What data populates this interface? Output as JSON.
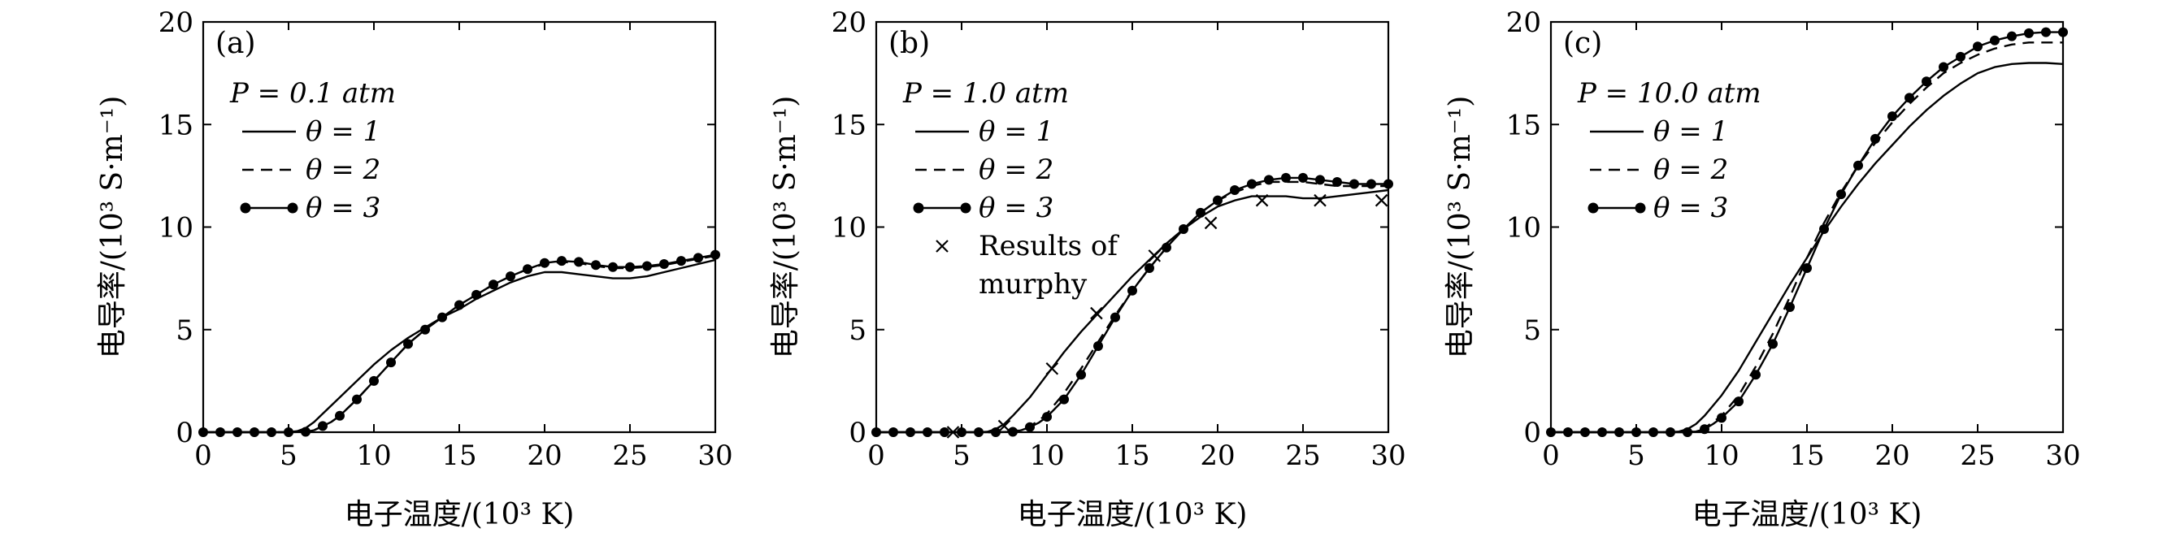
{
  "figure": {
    "background": "#ffffff",
    "line_color": "#000000"
  },
  "chart_data": [
    {
      "type": "line",
      "panel_label": "(a)",
      "pressure_label": "P = 0.1 atm",
      "xlabel": "电子温度/(10³ K)",
      "ylabel": "电导率/(10³ S·m⁻¹)",
      "xlim": [
        0,
        30
      ],
      "ylim": [
        0,
        20
      ],
      "xticks": [
        0,
        5,
        10,
        15,
        20,
        25,
        30
      ],
      "yticks": [
        0,
        5,
        10,
        15,
        20
      ],
      "legend_position": "top-left",
      "series": [
        {
          "name": "θ = 1",
          "style": "solid",
          "x": [
            0,
            2,
            4,
            5,
            5.5,
            6,
            6.5,
            7,
            8,
            9,
            10,
            11,
            12,
            13,
            14,
            15,
            16,
            17,
            18,
            19,
            20,
            21,
            22,
            23,
            24,
            25,
            26,
            27,
            28,
            29,
            30
          ],
          "y": [
            0,
            0,
            0,
            0,
            0.05,
            0.2,
            0.5,
            0.9,
            1.7,
            2.5,
            3.3,
            4.0,
            4.6,
            5.1,
            5.6,
            6.0,
            6.5,
            6.9,
            7.3,
            7.6,
            7.8,
            7.8,
            7.7,
            7.6,
            7.5,
            7.5,
            7.6,
            7.8,
            8.0,
            8.2,
            8.4
          ]
        },
        {
          "name": "θ = 2",
          "style": "dashed",
          "x": [
            0,
            2,
            4,
            5,
            6,
            6.5,
            7,
            7.5,
            8,
            9,
            10,
            11,
            12,
            13,
            14,
            15,
            16,
            17,
            18,
            19,
            20,
            21,
            22,
            23,
            24,
            25,
            26,
            27,
            28,
            29,
            30
          ],
          "y": [
            0,
            0,
            0,
            0,
            0.02,
            0.1,
            0.3,
            0.5,
            0.8,
            1.6,
            2.5,
            3.4,
            4.3,
            5.0,
            5.6,
            6.2,
            6.7,
            7.2,
            7.6,
            7.95,
            8.2,
            8.3,
            8.25,
            8.1,
            8.0,
            8.0,
            8.05,
            8.15,
            8.3,
            8.45,
            8.6
          ]
        },
        {
          "name": "θ = 3",
          "style": "solid-dot",
          "x": [
            0,
            2,
            4,
            5,
            6,
            6.5,
            7,
            7.5,
            8,
            9,
            10,
            11,
            12,
            13,
            14,
            15,
            16,
            17,
            18,
            19,
            20,
            21,
            22,
            23,
            24,
            25,
            26,
            27,
            28,
            29,
            30
          ],
          "y": [
            0,
            0,
            0,
            0,
            0.02,
            0.1,
            0.3,
            0.5,
            0.8,
            1.6,
            2.5,
            3.4,
            4.3,
            5.0,
            5.6,
            6.2,
            6.7,
            7.2,
            7.6,
            7.95,
            8.25,
            8.35,
            8.3,
            8.15,
            8.05,
            8.05,
            8.1,
            8.2,
            8.35,
            8.5,
            8.65
          ],
          "markers": [
            [
              0,
              0
            ],
            [
              1,
              0
            ],
            [
              2,
              0
            ],
            [
              3,
              0
            ],
            [
              4,
              0
            ],
            [
              5,
              0
            ],
            [
              6,
              0.02
            ],
            [
              7,
              0.3
            ],
            [
              8,
              0.8
            ],
            [
              9,
              1.6
            ],
            [
              10,
              2.5
            ],
            [
              11,
              3.4
            ],
            [
              12,
              4.3
            ],
            [
              13,
              5.0
            ],
            [
              14,
              5.6
            ],
            [
              15,
              6.2
            ],
            [
              16,
              6.7
            ],
            [
              17,
              7.2
            ],
            [
              18,
              7.6
            ],
            [
              19,
              7.95
            ],
            [
              20,
              8.25
            ],
            [
              21,
              8.35
            ],
            [
              22,
              8.3
            ],
            [
              23,
              8.15
            ],
            [
              24,
              8.05
            ],
            [
              25,
              8.05
            ],
            [
              26,
              8.1
            ],
            [
              27,
              8.2
            ],
            [
              28,
              8.35
            ],
            [
              29,
              8.5
            ],
            [
              30,
              8.65
            ]
          ]
        }
      ],
      "legend": [
        "θ = 1",
        "θ = 2",
        "θ = 3"
      ]
    },
    {
      "type": "line",
      "panel_label": "(b)",
      "pressure_label": "P = 1.0 atm",
      "xlabel": "电子温度/(10³ K)",
      "ylabel": "电导率/(10³ S·m⁻¹)",
      "xlim": [
        0,
        30
      ],
      "ylim": [
        0,
        20
      ],
      "xticks": [
        0,
        5,
        10,
        15,
        20,
        25,
        30
      ],
      "yticks": [
        0,
        5,
        10,
        15,
        20
      ],
      "legend_position": "top-left",
      "series": [
        {
          "name": "θ = 1",
          "style": "solid",
          "x": [
            0,
            3,
            5,
            6,
            6.5,
            7,
            7.5,
            8,
            9,
            10,
            11,
            12,
            13,
            14,
            15,
            16,
            17,
            18,
            19,
            20,
            21,
            22,
            23,
            24,
            25,
            26,
            27,
            28,
            29,
            30
          ],
          "y": [
            0,
            0,
            0,
            0,
            0.02,
            0.15,
            0.4,
            0.8,
            1.7,
            2.8,
            3.9,
            4.9,
            5.8,
            6.7,
            7.6,
            8.4,
            9.2,
            9.9,
            10.5,
            11.0,
            11.3,
            11.5,
            11.5,
            11.5,
            11.4,
            11.4,
            11.5,
            11.6,
            11.7,
            11.8
          ]
        },
        {
          "name": "θ = 2",
          "style": "dashed",
          "x": [
            0,
            3,
            5,
            7,
            8,
            8.5,
            9,
            9.5,
            10,
            11,
            12,
            13,
            14,
            15,
            16,
            17,
            18,
            19,
            20,
            21,
            22,
            23,
            24,
            25,
            26,
            27,
            28,
            29,
            30
          ],
          "y": [
            0,
            0,
            0,
            0,
            0.03,
            0.12,
            0.3,
            0.55,
            0.9,
            1.9,
            3.1,
            4.4,
            5.7,
            6.9,
            8.0,
            9.0,
            9.9,
            10.7,
            11.3,
            11.7,
            12.0,
            12.2,
            12.2,
            12.2,
            12.1,
            12.0,
            12.0,
            12.0,
            12.0
          ]
        },
        {
          "name": "θ = 3",
          "style": "solid-dot",
          "x": [
            0,
            3,
            5,
            7,
            8,
            8.5,
            9,
            9.5,
            10,
            11,
            12,
            13,
            14,
            15,
            16,
            17,
            18,
            19,
            20,
            21,
            22,
            23,
            24,
            25,
            26,
            27,
            28,
            29,
            30
          ],
          "y": [
            0,
            0,
            0,
            0,
            0.02,
            0.1,
            0.25,
            0.45,
            0.75,
            1.6,
            2.8,
            4.2,
            5.6,
            6.9,
            8.0,
            9.0,
            9.9,
            10.7,
            11.3,
            11.8,
            12.1,
            12.3,
            12.4,
            12.4,
            12.3,
            12.2,
            12.1,
            12.1,
            12.1
          ],
          "markers": [
            [
              0,
              0
            ],
            [
              1,
              0
            ],
            [
              2,
              0
            ],
            [
              3,
              0
            ],
            [
              4,
              0
            ],
            [
              5,
              0
            ],
            [
              6,
              0
            ],
            [
              7,
              0
            ],
            [
              8,
              0.02
            ],
            [
              9,
              0.25
            ],
            [
              10,
              0.75
            ],
            [
              11,
              1.6
            ],
            [
              12,
              2.8
            ],
            [
              13,
              4.2
            ],
            [
              14,
              5.6
            ],
            [
              15,
              6.9
            ],
            [
              16,
              8.0
            ],
            [
              17,
              9.0
            ],
            [
              18,
              9.9
            ],
            [
              19,
              10.7
            ],
            [
              20,
              11.3
            ],
            [
              21,
              11.8
            ],
            [
              22,
              12.1
            ],
            [
              23,
              12.3
            ],
            [
              24,
              12.4
            ],
            [
              25,
              12.4
            ],
            [
              26,
              12.3
            ],
            [
              27,
              12.2
            ],
            [
              28,
              12.1
            ],
            [
              29,
              12.1
            ],
            [
              30,
              12.1
            ]
          ]
        },
        {
          "name": "Results of murphy",
          "style": "cross",
          "points": [
            [
              4.5,
              0
            ],
            [
              7.5,
              0.3
            ],
            [
              10.3,
              3.1
            ],
            [
              12.9,
              5.8
            ],
            [
              16.3,
              8.6
            ],
            [
              19.6,
              10.2
            ],
            [
              22.6,
              11.3
            ],
            [
              26.0,
              11.3
            ],
            [
              29.6,
              11.3
            ]
          ]
        }
      ],
      "legend": [
        "θ = 1",
        "θ = 2",
        "θ = 3",
        "Results of",
        "murphy"
      ]
    },
    {
      "type": "line",
      "panel_label": "(c)",
      "pressure_label": "P = 10.0 atm",
      "xlabel": "电子温度/(10³ K)",
      "ylabel": "电导率/(10³ S·m⁻¹)",
      "xlim": [
        0,
        30
      ],
      "ylim": [
        0,
        20
      ],
      "xticks": [
        0,
        5,
        10,
        15,
        20,
        25,
        30
      ],
      "yticks": [
        0,
        5,
        10,
        15,
        20
      ],
      "legend_position": "top-left",
      "series": [
        {
          "name": "θ = 1",
          "style": "solid",
          "x": [
            0,
            4,
            6,
            7,
            7.5,
            8,
            8.5,
            9,
            10,
            11,
            12,
            13,
            14,
            15,
            16,
            17,
            18,
            19,
            20,
            21,
            22,
            23,
            24,
            25,
            26,
            27,
            28,
            29,
            30
          ],
          "y": [
            0,
            0,
            0,
            0,
            0.03,
            0.15,
            0.4,
            0.8,
            1.8,
            3.0,
            4.4,
            5.8,
            7.2,
            8.5,
            9.8,
            11.0,
            12.1,
            13.1,
            14.0,
            14.9,
            15.7,
            16.4,
            17.0,
            17.5,
            17.8,
            17.95,
            18.0,
            18.0,
            17.95
          ]
        },
        {
          "name": "θ = 2",
          "style": "dashed",
          "x": [
            0,
            4,
            6,
            8,
            8.5,
            9,
            9.5,
            10,
            11,
            12,
            13,
            14,
            15,
            16,
            17,
            18,
            19,
            20,
            21,
            22,
            23,
            24,
            25,
            26,
            27,
            28,
            29,
            30
          ],
          "y": [
            0,
            0,
            0,
            0,
            0.05,
            0.2,
            0.5,
            0.8,
            1.8,
            3.2,
            4.8,
            6.6,
            8.5,
            10.2,
            11.7,
            13.0,
            14.1,
            15.1,
            16.0,
            16.8,
            17.5,
            18.0,
            18.4,
            18.7,
            18.9,
            19.0,
            19.0,
            19.0
          ]
        },
        {
          "name": "θ = 3",
          "style": "solid-dot",
          "x": [
            0,
            4,
            6,
            8,
            8.5,
            9,
            9.5,
            10,
            11,
            12,
            13,
            14,
            15,
            16,
            17,
            18,
            19,
            20,
            21,
            22,
            23,
            24,
            25,
            26,
            27,
            28,
            29,
            30
          ],
          "y": [
            0,
            0,
            0,
            0,
            0.03,
            0.15,
            0.4,
            0.7,
            1.5,
            2.8,
            4.3,
            6.1,
            8.0,
            9.9,
            11.6,
            13.0,
            14.3,
            15.4,
            16.3,
            17.1,
            17.8,
            18.3,
            18.8,
            19.1,
            19.3,
            19.45,
            19.5,
            19.5
          ],
          "markers": [
            [
              0,
              0
            ],
            [
              1,
              0
            ],
            [
              2,
              0
            ],
            [
              3,
              0
            ],
            [
              4,
              0
            ],
            [
              5,
              0
            ],
            [
              6,
              0
            ],
            [
              7,
              0
            ],
            [
              8,
              0
            ],
            [
              9,
              0.15
            ],
            [
              10,
              0.7
            ],
            [
              11,
              1.5
            ],
            [
              12,
              2.8
            ],
            [
              13,
              4.3
            ],
            [
              14,
              6.1
            ],
            [
              15,
              8.0
            ],
            [
              16,
              9.9
            ],
            [
              17,
              11.6
            ],
            [
              18,
              13.0
            ],
            [
              19,
              14.3
            ],
            [
              20,
              15.4
            ],
            [
              21,
              16.3
            ],
            [
              22,
              17.1
            ],
            [
              23,
              17.8
            ],
            [
              24,
              18.3
            ],
            [
              25,
              18.8
            ],
            [
              26,
              19.1
            ],
            [
              27,
              19.3
            ],
            [
              28,
              19.45
            ],
            [
              29,
              19.5
            ],
            [
              30,
              19.5
            ]
          ]
        }
      ],
      "legend": [
        "θ = 1",
        "θ = 2",
        "θ = 3"
      ]
    }
  ]
}
